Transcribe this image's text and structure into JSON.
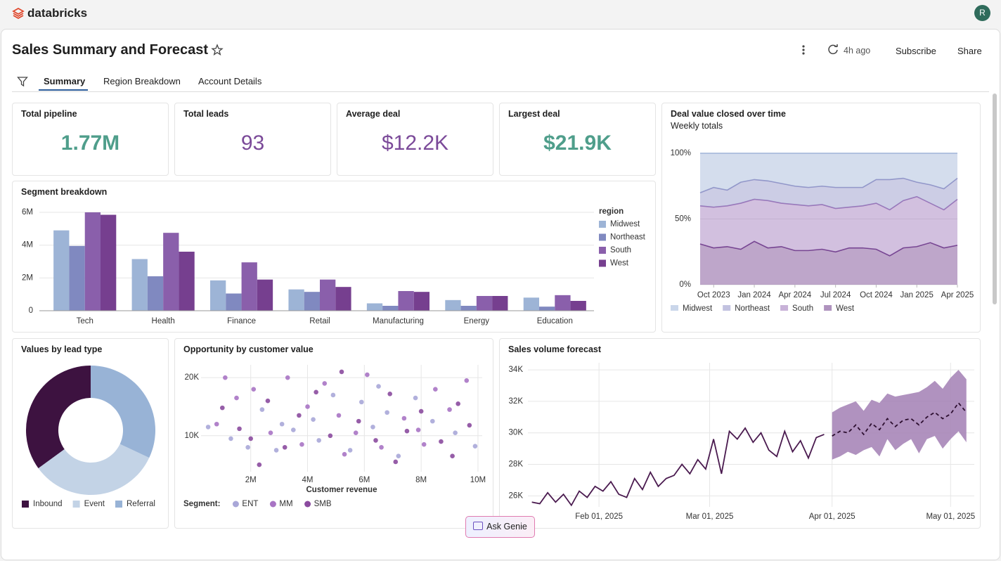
{
  "app": {
    "brand": "databricks",
    "avatar": "R"
  },
  "header": {
    "title": "Sales Summary and Forecast",
    "refreshed": "4h ago",
    "actions": [
      "Subscribe",
      "Share"
    ]
  },
  "tabs": [
    "Summary",
    "Region Breakdown",
    "Account Details"
  ],
  "kpis": [
    {
      "label": "Total pipeline",
      "value": "1.77M",
      "color": "#4f9e8b"
    },
    {
      "label": "Total leads",
      "value": "93",
      "color": "#7b4a99"
    },
    {
      "label": "Average deal",
      "value": "$12.2K",
      "color": "#7b4a99"
    },
    {
      "label": "Largest deal",
      "value": "$21.9K",
      "color": "#4f9e8b"
    }
  ],
  "chart_data": [
    {
      "type": "bar",
      "title": "Segment breakdown",
      "legend_title": "region",
      "categories": [
        "Tech",
        "Health",
        "Finance",
        "Retail",
        "Manufacturing",
        "Energy",
        "Education"
      ],
      "series": [
        {
          "name": "Midwest",
          "color": "#9db4d6",
          "values": [
            4900000,
            3150000,
            1850000,
            1300000,
            450000,
            650000,
            800000
          ]
        },
        {
          "name": "Northeast",
          "color": "#8089c0",
          "values": [
            3950000,
            2100000,
            1050000,
            1150000,
            300000,
            300000,
            250000
          ]
        },
        {
          "name": "South",
          "color": "#8a5fab",
          "values": [
            6000000,
            4750000,
            2950000,
            1900000,
            1200000,
            900000,
            950000
          ]
        },
        {
          "name": "West",
          "color": "#763f8f",
          "values": [
            5850000,
            3600000,
            1900000,
            1450000,
            1150000,
            900000,
            600000
          ]
        }
      ],
      "ylim": [
        0,
        6400000
      ],
      "yticks": [
        0,
        {
          "value": 2000000,
          "label": "2M"
        },
        {
          "value": 4000000,
          "label": "4M"
        },
        {
          "value": 6000000,
          "label": "6M"
        }
      ]
    },
    {
      "type": "area",
      "title": "Deal value closed over time",
      "subtitle": "Weekly totals",
      "x": [
        "2023-09",
        "2023-10",
        "2023-11",
        "2023-12",
        "2024-01",
        "2024-02",
        "2024-03",
        "2024-04",
        "2024-05",
        "2024-06",
        "2024-07",
        "2024-08",
        "2024-09",
        "2024-10",
        "2024-11",
        "2024-12",
        "2025-01",
        "2025-02",
        "2025-03",
        "2025-04"
      ],
      "xlim": [
        "2023-09",
        "2025-04"
      ],
      "xticks": [
        {
          "value": "2023-10",
          "label": "Oct 2023"
        },
        {
          "value": "2024-01",
          "label": "Jan 2024"
        },
        {
          "value": "2024-04",
          "label": "Apr 2024"
        },
        {
          "value": "2024-07",
          "label": "Jul 2024"
        },
        {
          "value": "2024-10",
          "label": "Oct 2024"
        },
        {
          "value": "2025-01",
          "label": "Jan 2025"
        },
        {
          "value": "2025-04",
          "label": "Apr 2025"
        }
      ],
      "ylim": [
        0,
        100
      ],
      "yticks": [
        {
          "value": 0,
          "label": "0%"
        },
        {
          "value": 50,
          "label": "50%"
        },
        {
          "value": 100,
          "label": "100%"
        }
      ],
      "series": [
        {
          "name": "Midwest",
          "color": "#9fb4d8",
          "values": [
            30,
            26,
            28,
            22,
            20,
            21,
            23,
            25,
            26,
            25,
            26,
            26,
            26,
            20,
            20,
            19,
            22,
            24,
            27,
            19
          ]
        },
        {
          "name": "Northeast",
          "color": "#8f90c6",
          "values": [
            10,
            15,
            12,
            16,
            15,
            15,
            15,
            14,
            14,
            14,
            16,
            15,
            14,
            18,
            23,
            17,
            11,
            14,
            16,
            16
          ]
        },
        {
          "name": "South",
          "color": "#9b73b8",
          "values": [
            29,
            31,
            31,
            35,
            32,
            36,
            33,
            35,
            34,
            34,
            33,
            31,
            32,
            35,
            35,
            36,
            38,
            30,
            29,
            35
          ]
        },
        {
          "name": "West",
          "color": "#6e3a89",
          "values": [
            31,
            28,
            29,
            27,
            33,
            28,
            29,
            26,
            26,
            27,
            25,
            28,
            28,
            27,
            22,
            28,
            29,
            32,
            28,
            30
          ]
        }
      ]
    },
    {
      "type": "pie",
      "donut": true,
      "title": "Values by lead type",
      "categories": [
        "Inbound",
        "Event",
        "Referral"
      ],
      "values": [
        35,
        33,
        32
      ],
      "colors": [
        "#3d1240",
        "#c3d3e6",
        "#98b3d6"
      ]
    },
    {
      "type": "scatter",
      "title": "Opportunity by customer value",
      "x_label": "Customer revenue",
      "legend_title": "Segment:",
      "xlim": [
        250000,
        10150000
      ],
      "ylim": [
        3800,
        22200
      ],
      "xticks": [
        {
          "value": 2000000,
          "label": "2M"
        },
        {
          "value": 4000000,
          "label": "4M"
        },
        {
          "value": 6000000,
          "label": "6M"
        },
        {
          "value": 8000000,
          "label": "8M"
        },
        {
          "value": 10000000,
          "label": "10M"
        }
      ],
      "yticks": [
        {
          "value": 10000,
          "label": "10K"
        },
        {
          "value": 20000,
          "label": "20K"
        }
      ],
      "series": [
        {
          "name": "ENT",
          "color": "#a9a7d8",
          "x": [
            500000,
            1300000,
            1900000,
            2400000,
            3100000,
            3500000,
            4200000,
            4400000,
            4900000,
            5500000,
            5900000,
            6300000,
            6800000,
            7200000,
            7800000,
            8400000,
            9200000,
            9900000,
            2900000,
            6500000
          ],
          "y": [
            11500,
            9500,
            8000,
            14500,
            12000,
            11000,
            12800,
            9200,
            17000,
            7500,
            15800,
            11500,
            14000,
            6500,
            16500,
            12500,
            10500,
            8200,
            7500,
            18500
          ]
        },
        {
          "name": "MM",
          "color": "#a874c4",
          "x": [
            800000,
            1500000,
            2100000,
            2700000,
            3300000,
            3800000,
            4600000,
            5100000,
            5700000,
            6100000,
            6600000,
            7400000,
            7900000,
            8500000,
            9000000,
            9600000,
            1100000,
            5300000,
            8100000,
            4000000
          ],
          "y": [
            12000,
            16500,
            18000,
            10500,
            20000,
            8500,
            19000,
            13500,
            10500,
            20500,
            8000,
            13000,
            11000,
            18000,
            14500,
            19500,
            20000,
            6800,
            8500,
            15000
          ]
        },
        {
          "name": "SMB",
          "color": "#8b4b9f",
          "x": [
            1000000,
            1600000,
            2000000,
            2600000,
            3200000,
            3700000,
            4300000,
            4800000,
            5200000,
            5800000,
            6400000,
            6900000,
            7500000,
            8000000,
            8700000,
            9300000,
            9700000,
            2300000,
            7100000,
            9100000
          ],
          "y": [
            14800,
            11200,
            9500,
            16000,
            8000,
            13500,
            17500,
            10000,
            21000,
            12500,
            9200,
            17200,
            10800,
            14200,
            9000,
            15500,
            11800,
            5000,
            5500,
            6500
          ]
        }
      ]
    },
    {
      "type": "line",
      "title": "Sales volume forecast",
      "xlim": [
        "2025-01-14",
        "2025-05-07"
      ],
      "ylim": [
        25300,
        34450
      ],
      "xticks": [
        {
          "value": "2025-02-01",
          "label": "Feb 01, 2025"
        },
        {
          "value": "2025-03-01",
          "label": "Mar 01, 2025"
        },
        {
          "value": "2025-04-01",
          "label": "Apr 01, 2025"
        },
        {
          "value": "2025-05-01",
          "label": "May 01, 2025"
        }
      ],
      "yticks": [
        {
          "value": 26000,
          "label": "26K"
        },
        {
          "value": 28000,
          "label": "28K"
        },
        {
          "value": 30000,
          "label": "30K"
        },
        {
          "value": 32000,
          "label": "32K"
        },
        {
          "value": 34000,
          "label": "34K"
        }
      ],
      "series": [
        {
          "color": "#4a1a4f",
          "x": [
            "2025-01-15",
            "2025-01-17",
            "2025-01-19",
            "2025-01-21",
            "2025-01-23",
            "2025-01-25",
            "2025-01-27",
            "2025-01-29",
            "2025-01-31",
            "2025-02-02",
            "2025-02-04",
            "2025-02-06",
            "2025-02-08",
            "2025-02-10",
            "2025-02-12",
            "2025-02-14",
            "2025-02-16",
            "2025-02-18",
            "2025-02-20",
            "2025-02-22",
            "2025-02-24",
            "2025-02-26",
            "2025-02-28",
            "2025-03-02",
            "2025-03-04",
            "2025-03-06",
            "2025-03-08",
            "2025-03-10",
            "2025-03-12",
            "2025-03-14",
            "2025-03-16",
            "2025-03-18",
            "2025-03-20",
            "2025-03-22",
            "2025-03-24",
            "2025-03-26",
            "2025-03-28",
            "2025-03-30"
          ],
          "values": [
            25600,
            25500,
            26200,
            25600,
            26100,
            25400,
            26300,
            25900,
            26600,
            26300,
            26900,
            26100,
            25900,
            27100,
            26400,
            27500,
            26600,
            27100,
            27300,
            28000,
            27400,
            28300,
            27700,
            29600,
            27400,
            30100,
            29600,
            30300,
            29400,
            30000,
            28900,
            28500,
            30100,
            28800,
            29500,
            28400,
            29700,
            29900
          ]
        },
        {
          "color": "#2d0f30",
          "dashed": true,
          "x": [
            "2025-04-01",
            "2025-04-03",
            "2025-04-05",
            "2025-04-07",
            "2025-04-09",
            "2025-04-11",
            "2025-04-13",
            "2025-04-15",
            "2025-04-17",
            "2025-04-19",
            "2025-04-21",
            "2025-04-23",
            "2025-04-25",
            "2025-04-27",
            "2025-04-29",
            "2025-05-01",
            "2025-05-03",
            "2025-05-05"
          ],
          "values": [
            29800,
            30100,
            30000,
            30500,
            29900,
            30600,
            30200,
            30900,
            30400,
            30800,
            30900,
            30500,
            31000,
            31300,
            30900,
            31200,
            31900,
            31300
          ]
        }
      ],
      "band": {
        "color": "#a27fb4",
        "x": [
          "2025-04-01",
          "2025-04-03",
          "2025-04-05",
          "2025-04-07",
          "2025-04-09",
          "2025-04-11",
          "2025-04-13",
          "2025-04-15",
          "2025-04-17",
          "2025-04-19",
          "2025-04-21",
          "2025-04-23",
          "2025-04-25",
          "2025-04-27",
          "2025-04-29",
          "2025-05-01",
          "2025-05-03",
          "2025-05-05"
        ],
        "lower": [
          28300,
          28500,
          28800,
          28600,
          28900,
          29100,
          28500,
          29600,
          28900,
          29300,
          29600,
          28700,
          29600,
          29800,
          29000,
          29600,
          30100,
          29400
        ],
        "upper": [
          31300,
          31600,
          31800,
          32000,
          31400,
          32100,
          31900,
          32500,
          32300,
          32400,
          32500,
          32600,
          32900,
          33300,
          32800,
          33500,
          34000,
          33400
        ]
      }
    }
  ],
  "assistant": {
    "button": "Ask Genie"
  }
}
